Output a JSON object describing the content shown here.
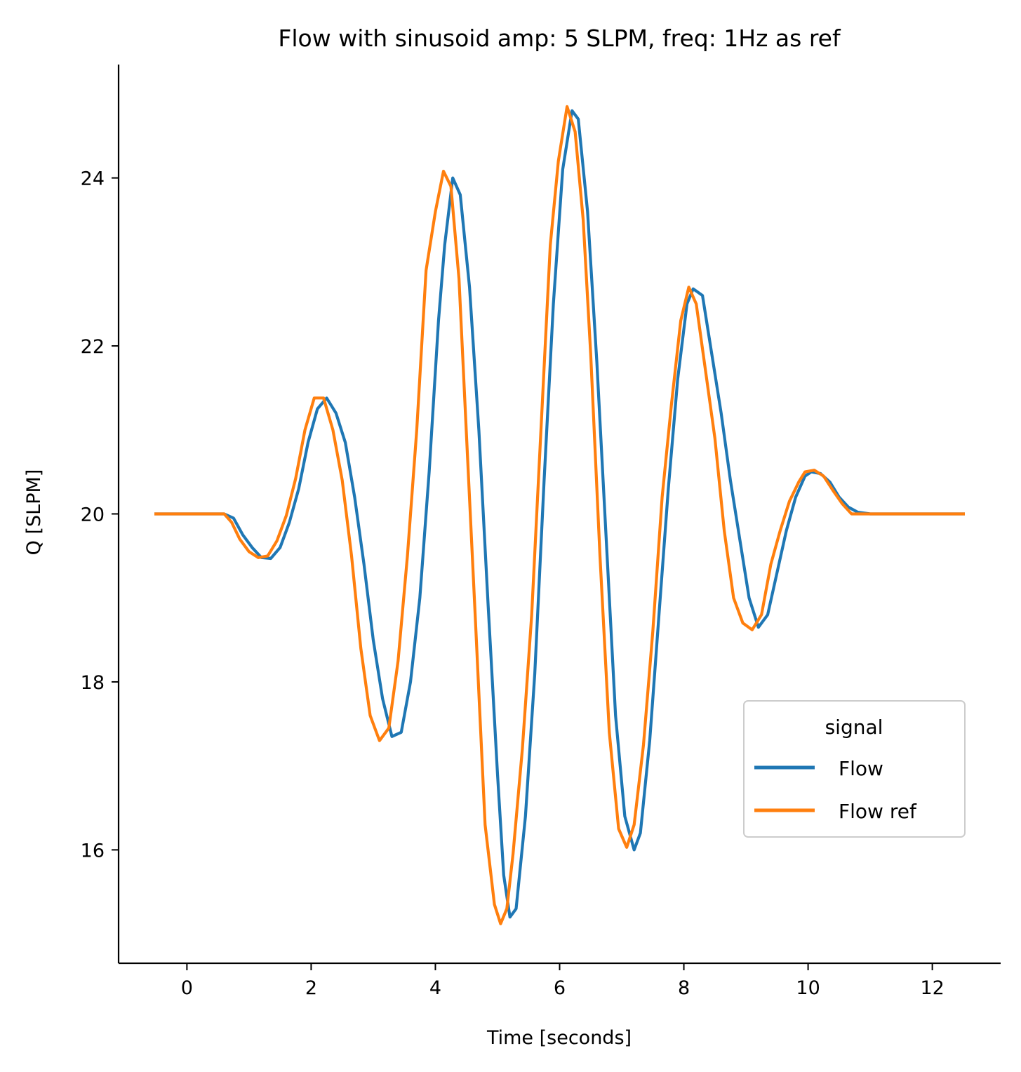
{
  "chart_data": {
    "type": "line",
    "title": "Flow with sinusoid amp: 5 SLPM, freq: 1Hz as ref",
    "xlabel": "Time [seconds]",
    "ylabel": "Q [SLPM]",
    "xlim": [
      -1.1,
      13.1
    ],
    "ylim": [
      14.65,
      25.35
    ],
    "xticks": [
      0,
      2,
      4,
      6,
      8,
      10,
      12
    ],
    "yticks": [
      16,
      18,
      20,
      22,
      24
    ],
    "grid": false,
    "legend": {
      "title": "signal",
      "placement": "lower-right"
    },
    "series": [
      {
        "name": "Flow",
        "color": "#1f77b4",
        "x": [
          -0.5,
          0.0,
          0.6,
          0.75,
          0.9,
          1.05,
          1.2,
          1.35,
          1.5,
          1.65,
          1.8,
          1.95,
          2.1,
          2.25,
          2.4,
          2.55,
          2.7,
          2.85,
          3.0,
          3.15,
          3.3,
          3.45,
          3.6,
          3.75,
          3.9,
          4.05,
          4.15,
          4.28,
          4.4,
          4.55,
          4.7,
          4.85,
          5.0,
          5.1,
          5.2,
          5.3,
          5.45,
          5.6,
          5.75,
          5.9,
          6.05,
          6.2,
          6.3,
          6.45,
          6.6,
          6.75,
          6.9,
          7.05,
          7.2,
          7.3,
          7.45,
          7.6,
          7.75,
          7.9,
          8.05,
          8.15,
          8.3,
          8.45,
          8.6,
          8.75,
          8.9,
          9.05,
          9.2,
          9.35,
          9.5,
          9.65,
          9.8,
          9.95,
          10.05,
          10.2,
          10.35,
          10.5,
          10.65,
          10.8,
          11.0,
          12.5
        ],
        "values": [
          20.0,
          20.0,
          20.0,
          19.95,
          19.75,
          19.6,
          19.48,
          19.47,
          19.6,
          19.9,
          20.3,
          20.85,
          21.25,
          21.38,
          21.2,
          20.85,
          20.2,
          19.4,
          18.5,
          17.8,
          17.35,
          17.4,
          18.0,
          19.0,
          20.5,
          22.3,
          23.2,
          24.0,
          23.8,
          22.7,
          21.0,
          18.9,
          16.9,
          15.7,
          15.2,
          15.3,
          16.4,
          18.1,
          20.4,
          22.5,
          24.1,
          24.8,
          24.7,
          23.6,
          21.8,
          19.7,
          17.6,
          16.4,
          16.0,
          16.2,
          17.3,
          18.8,
          20.3,
          21.6,
          22.5,
          22.68,
          22.6,
          21.9,
          21.2,
          20.4,
          19.7,
          19.0,
          18.65,
          18.8,
          19.3,
          19.8,
          20.2,
          20.45,
          20.5,
          20.48,
          20.38,
          20.2,
          20.08,
          20.02,
          20.0,
          20.0
        ]
      },
      {
        "name": "Flow ref",
        "color": "#ff7f0e",
        "x": [
          -0.5,
          0.0,
          0.6,
          0.72,
          0.85,
          1.0,
          1.15,
          1.3,
          1.45,
          1.6,
          1.75,
          1.9,
          2.05,
          2.2,
          2.35,
          2.5,
          2.65,
          2.8,
          2.95,
          3.1,
          3.25,
          3.4,
          3.55,
          3.7,
          3.85,
          4.0,
          4.13,
          4.25,
          4.38,
          4.5,
          4.65,
          4.8,
          4.95,
          5.05,
          5.15,
          5.25,
          5.4,
          5.55,
          5.7,
          5.85,
          5.98,
          6.12,
          6.25,
          6.38,
          6.5,
          6.65,
          6.8,
          6.95,
          7.08,
          7.2,
          7.35,
          7.5,
          7.65,
          7.8,
          7.95,
          8.08,
          8.2,
          8.35,
          8.5,
          8.65,
          8.8,
          8.95,
          9.1,
          9.25,
          9.4,
          9.55,
          9.7,
          9.85,
          9.95,
          10.1,
          10.25,
          10.4,
          10.55,
          10.7,
          11.0,
          12.5
        ],
        "values": [
          20.0,
          20.0,
          20.0,
          19.9,
          19.7,
          19.55,
          19.48,
          19.5,
          19.68,
          19.98,
          20.42,
          21.0,
          21.38,
          21.38,
          21.0,
          20.4,
          19.5,
          18.4,
          17.6,
          17.3,
          17.45,
          18.25,
          19.5,
          21.0,
          22.9,
          23.6,
          24.08,
          23.9,
          22.8,
          20.95,
          18.65,
          16.3,
          15.35,
          15.12,
          15.3,
          15.95,
          17.2,
          18.8,
          21.0,
          23.2,
          24.2,
          24.85,
          24.55,
          23.5,
          21.9,
          19.5,
          17.4,
          16.25,
          16.03,
          16.3,
          17.25,
          18.6,
          20.2,
          21.3,
          22.3,
          22.7,
          22.5,
          21.7,
          20.9,
          19.8,
          19.0,
          18.7,
          18.62,
          18.8,
          19.4,
          19.8,
          20.15,
          20.38,
          20.5,
          20.52,
          20.45,
          20.28,
          20.12,
          20.0,
          20.0,
          20.0
        ]
      }
    ]
  }
}
